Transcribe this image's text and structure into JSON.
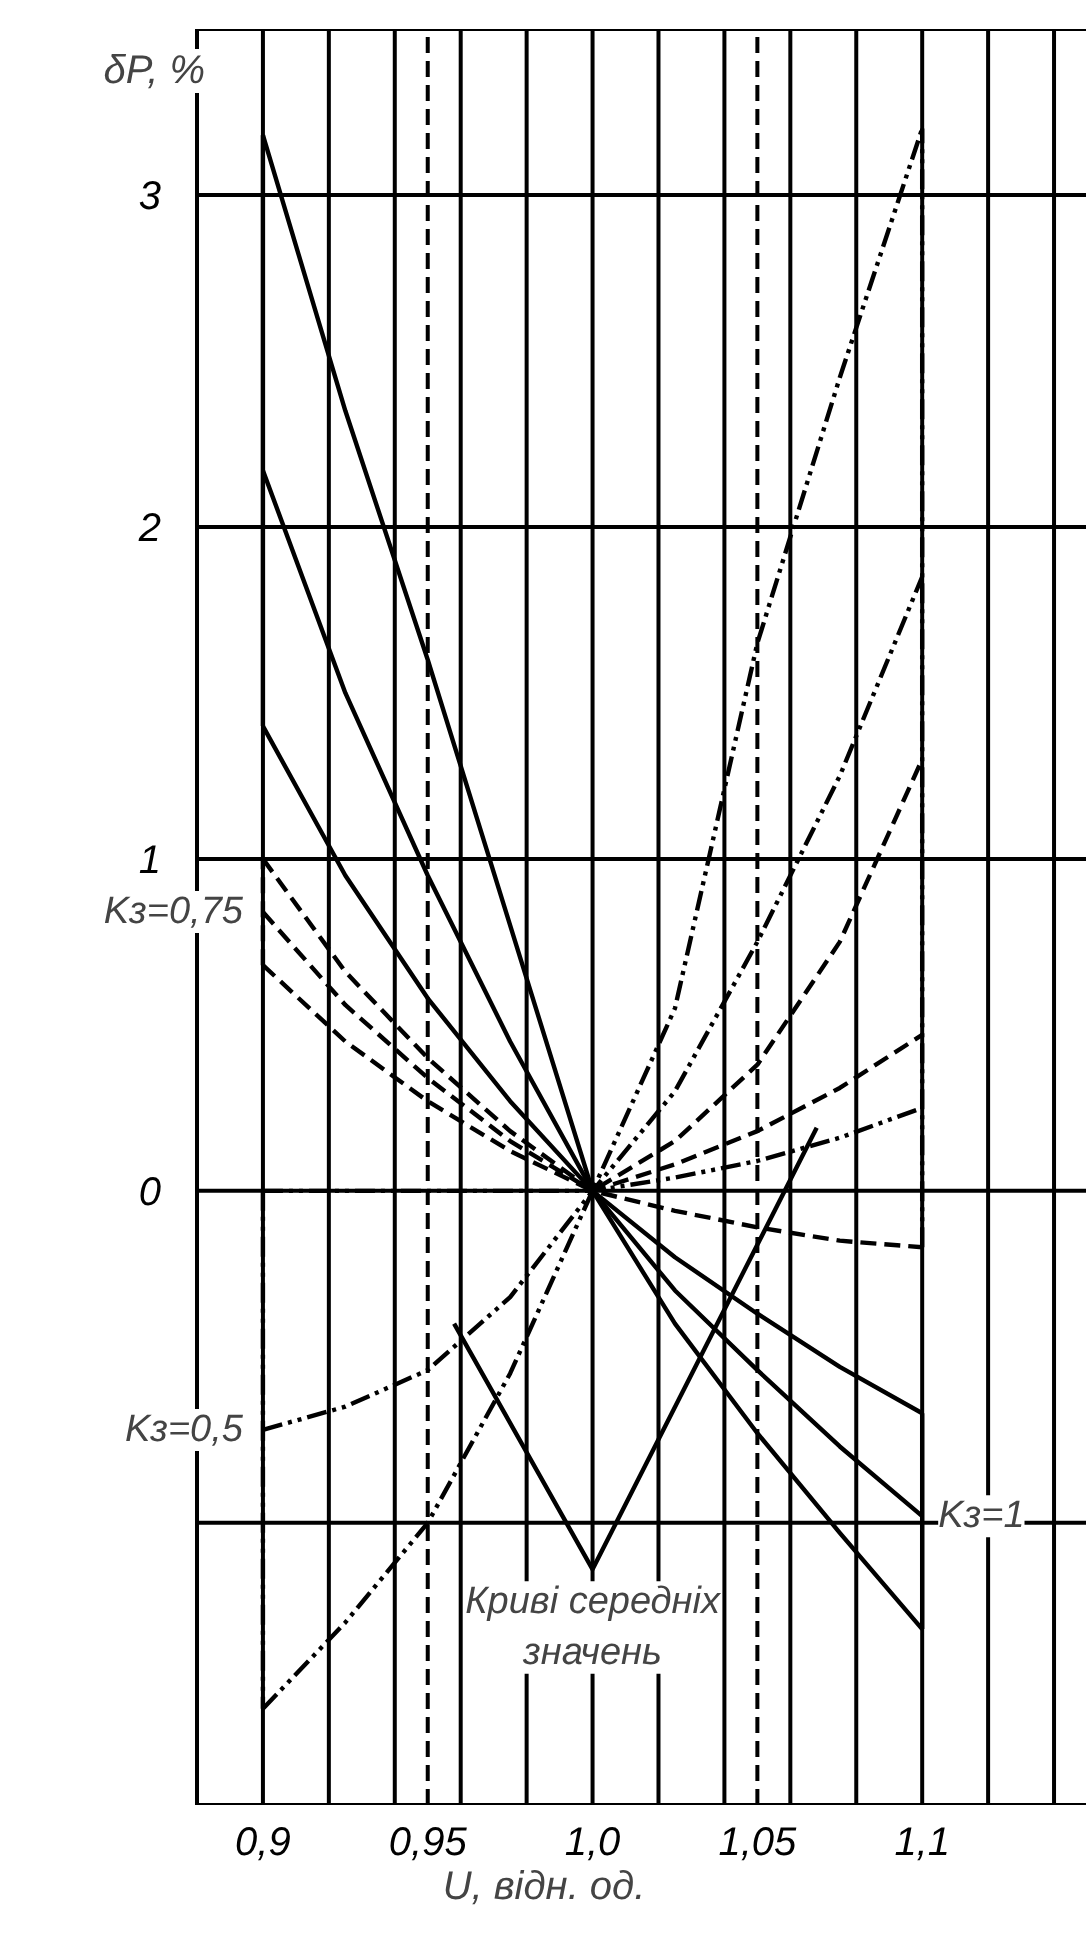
{
  "chart_data": {
    "type": "line",
    "xlabel": "U, відн. од.",
    "ylabel": "δP, %",
    "x": [
      0.9,
      0.925,
      0.95,
      0.975,
      1.0,
      1.025,
      1.05,
      1.075,
      1.1
    ],
    "xlim": [
      0.88,
      1.15
    ],
    "ylim": [
      -1.85,
      3.5
    ],
    "xticks": [
      {
        "value": 0.9,
        "label": "0,9"
      },
      {
        "value": 0.92,
        "label": null
      },
      {
        "value": 0.94,
        "label": null
      },
      {
        "value": 0.96,
        "label": null
      },
      {
        "value": 0.98,
        "label": null
      },
      {
        "value": 1.0,
        "label": "1,0"
      },
      {
        "value": 1.02,
        "label": null
      },
      {
        "value": 1.04,
        "label": null
      },
      {
        "value": 1.06,
        "label": null
      },
      {
        "value": 1.08,
        "label": null
      },
      {
        "value": 1.1,
        "label": "1,1"
      },
      {
        "value": 1.12,
        "label": null
      },
      {
        "value": 1.14,
        "label": null
      }
    ],
    "yticks": [
      {
        "value": -1,
        "label": null
      },
      0,
      1,
      2,
      3
    ],
    "grid": true,
    "series": [
      {
        "color": "#000000",
        "line_style": "solid",
        "values": [
          3.18,
          2.35,
          1.6,
          0.8,
          0,
          -0.4,
          -0.73,
          -1.03,
          -1.32
        ]
      },
      {
        "color": "#000000",
        "line_style": "solid",
        "values": [
          2.17,
          1.5,
          0.95,
          0.45,
          0,
          -0.3,
          -0.54,
          -0.77,
          -0.98
        ]
      },
      {
        "color": "#000000",
        "line_style": "solid",
        "values": [
          1.4,
          0.95,
          0.58,
          0.27,
          0,
          -0.2,
          -0.37,
          -0.53,
          -0.67
        ]
      },
      {
        "color": "#000000",
        "line_style": "dashed",
        "values": [
          1.0,
          0.66,
          0.4,
          0.18,
          0,
          -0.06,
          -0.11,
          -0.15,
          -0.17
        ]
      },
      {
        "color": "#000000",
        "line_style": "dashed",
        "values": [
          0.84,
          0.56,
          0.34,
          0.15,
          0,
          0.08,
          0.18,
          0.31,
          0.47
        ]
      },
      {
        "color": "#000000",
        "line_style": "dashed",
        "values": [
          0.68,
          0.45,
          0.27,
          0.12,
          0,
          0.15,
          0.38,
          0.75,
          1.3
        ]
      },
      {
        "color": "#000000",
        "line_style": "dashdot",
        "values": [
          0,
          0,
          0,
          0,
          0,
          0.04,
          0.09,
          0.16,
          0.25
        ]
      },
      {
        "color": "#000000",
        "line_style": "dashdot",
        "values": [
          -0.72,
          -0.65,
          -0.54,
          -0.32,
          0,
          0.3,
          0.75,
          1.25,
          1.85
        ]
      },
      {
        "color": "#000000",
        "line_style": "dashdot",
        "values": [
          -1.56,
          -1.3,
          -1.0,
          -0.55,
          0,
          0.55,
          1.65,
          2.45,
          3.2
        ]
      },
      {
        "color": "#000000",
        "line_style": "solid",
        "x": [
          0.9,
          0.9
        ],
        "values": [
          1.4,
          3.18
        ]
      },
      {
        "color": "#000000",
        "line_style": "dashed",
        "x": [
          0.9,
          0.9
        ],
        "values": [
          0.68,
          1.0
        ]
      },
      {
        "color": "#000000",
        "line_style": "dashdot",
        "x": [
          0.9,
          0.9
        ],
        "values": [
          0,
          -1.56
        ]
      },
      {
        "color": "#000000",
        "line_style": "solid",
        "x": [
          1.1,
          1.1
        ],
        "values": [
          -0.67,
          -1.32
        ]
      },
      {
        "color": "#000000",
        "line_style": "dashdot",
        "x": [
          1.1,
          1.1
        ],
        "values": [
          -0.17,
          3.2
        ]
      },
      {
        "color": "#000000",
        "line_style": "solid",
        "x": [
          0.958,
          1.0,
          1.068
        ],
        "values": [
          -0.4,
          -1.14,
          0.19
        ]
      }
    ],
    "ref_lines": [
      {
        "axis": "x",
        "value": 0.95,
        "label": "0,95",
        "line_style": "dashed",
        "color": "#000000"
      },
      {
        "axis": "x",
        "value": 1.05,
        "label": "1,05",
        "line_style": "dashed",
        "color": "#000000"
      }
    ],
    "annotations": [
      {
        "text": "Kз=0,75",
        "x": 0.9,
        "y": 0.84
      },
      {
        "text": "Kз=0,5",
        "x": 0.9,
        "y": -0.72
      },
      {
        "text": "Kз=1",
        "x": 1.1,
        "y": -0.98
      },
      {
        "text": "Криві середніх значень",
        "x": 1.0,
        "y": -1.14
      }
    ]
  }
}
